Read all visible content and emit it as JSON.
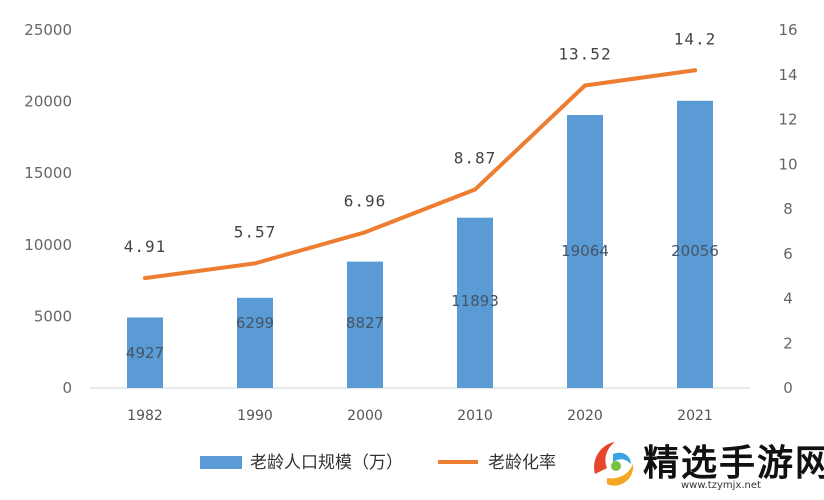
{
  "chart_data": {
    "type": "bar+line",
    "categories": [
      "1982",
      "1990",
      "2000",
      "2010",
      "2020",
      "2021"
    ],
    "series": [
      {
        "name": "老龄人口规模（万）",
        "type": "bar",
        "axis": "left",
        "values": [
          4927,
          6299,
          8827,
          11893,
          19064,
          20056
        ],
        "labels": [
          "4927",
          "6299",
          "8827",
          "11893",
          "19064",
          "20056"
        ],
        "color": "#5B9BD5"
      },
      {
        "name": "老龄化率",
        "type": "line",
        "axis": "right",
        "values": [
          4.91,
          5.57,
          6.96,
          8.87,
          13.52,
          14.2
        ],
        "labels": [
          "4.91",
          "5.57",
          "6.96",
          "8.87",
          "13.52",
          "14.2"
        ],
        "color": "#ED7D31"
      }
    ],
    "y_left": {
      "min": 0,
      "max": 25000,
      "ticks": [
        "0",
        "5000",
        "10000",
        "15000",
        "20000",
        "25000"
      ]
    },
    "y_right": {
      "min": 0,
      "max": 16,
      "ticks": [
        "0",
        "2",
        "4",
        "6",
        "8",
        "10",
        "12",
        "14",
        "16"
      ]
    },
    "grid": false,
    "legend_position": "bottom-left"
  },
  "watermark": {
    "title": "精选手游网",
    "url": "www.tzymjx.net"
  }
}
